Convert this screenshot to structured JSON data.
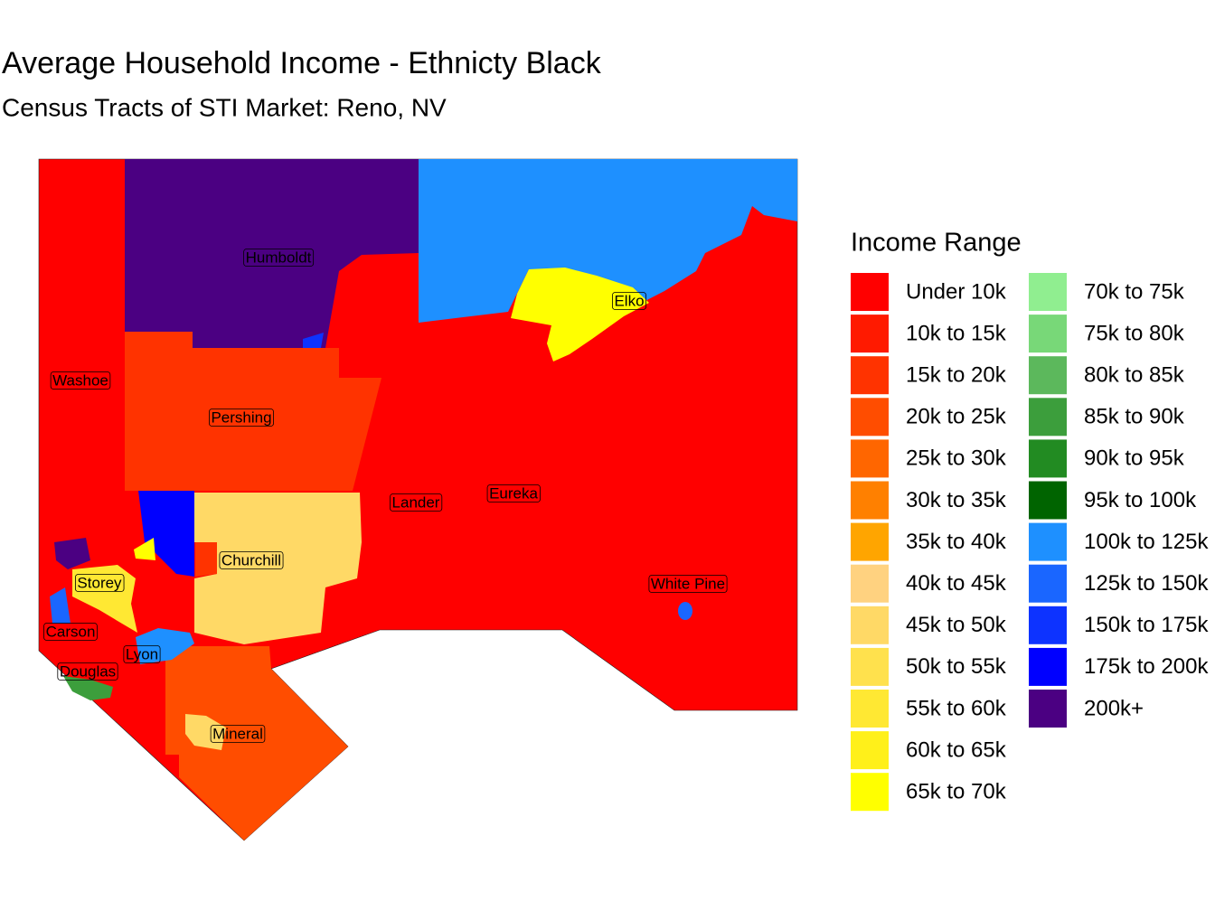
{
  "title": "Average Household Income - Ethnicty Black",
  "subtitle": "Census Tracts of STI Market: Reno, NV",
  "legend": {
    "title": "Income Range",
    "items": [
      {
        "label": "Under 10k",
        "color": "#ff0000"
      },
      {
        "label": "10k to 15k",
        "color": "#ff1a00"
      },
      {
        "label": "15k to 20k",
        "color": "#ff3300"
      },
      {
        "label": "20k to 25k",
        "color": "#ff4d00"
      },
      {
        "label": "25k to 30k",
        "color": "#ff6600"
      },
      {
        "label": "30k to 35k",
        "color": "#ff8000"
      },
      {
        "label": "35k to 40k",
        "color": "#ffa500"
      },
      {
        "label": "40k to 45k",
        "color": "#ffd280"
      },
      {
        "label": "45k to 50k",
        "color": "#ffd966"
      },
      {
        "label": "50k to 55k",
        "color": "#ffe14d"
      },
      {
        "label": "55k to 60k",
        "color": "#ffe833"
      },
      {
        "label": "60k to 65k",
        "color": "#fff01a"
      },
      {
        "label": "65k to 70k",
        "color": "#ffff00"
      },
      {
        "label": "70k to 75k",
        "color": "#90ee90"
      },
      {
        "label": "75k to 80k",
        "color": "#78d878"
      },
      {
        "label": "80k to 85k",
        "color": "#5cb85c"
      },
      {
        "label": "85k to 90k",
        "color": "#3c9e3c"
      },
      {
        "label": "90k to 95k",
        "color": "#228b22"
      },
      {
        "label": "95k to 100k",
        "color": "#006400"
      },
      {
        "label": "100k to 125k",
        "color": "#1e90ff"
      },
      {
        "label": "125k to 150k",
        "color": "#1a66ff"
      },
      {
        "label": "150k to 175k",
        "color": "#0d33ff"
      },
      {
        "label": "175k to 200k",
        "color": "#0000ff"
      },
      {
        "label": "200k+",
        "color": "#4b0082"
      }
    ]
  },
  "counties": [
    "Humboldt",
    "Washoe",
    "Pershing",
    "Lander",
    "Eureka",
    "Elko",
    "Churchill",
    "White Pine",
    "Storey",
    "Carson",
    "Lyon",
    "Douglas",
    "Mineral"
  ]
}
